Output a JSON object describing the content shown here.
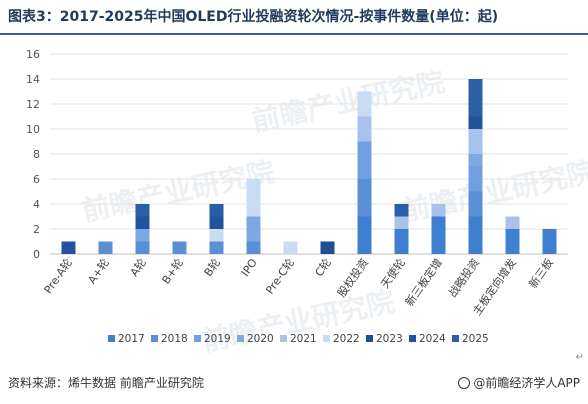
{
  "header": {
    "title": "图表3：2017-2025年中国OLED行业投融资轮次情况-按事件数量(单位：起)"
  },
  "footer": {
    "source": "资料来源：烯牛数据 前瞻产业研究院",
    "brand": "@前瞻经济学人APP"
  },
  "watermark": "前瞻产业研究院",
  "chart_data": {
    "type": "bar",
    "stacked": true,
    "categories": [
      "Pre-A轮",
      "A+轮",
      "A轮",
      "B+轮",
      "B轮",
      "IPO",
      "Pre-C轮",
      "C轮",
      "股权投资",
      "天使轮",
      "新三板定增",
      "战略投资",
      "主板定向增发",
      "新三板"
    ],
    "ylim": [
      0,
      16
    ],
    "yticks": [
      0,
      2,
      4,
      6,
      8,
      10,
      12,
      14,
      16
    ],
    "grid": true,
    "legend_position": "bottom",
    "series": [
      {
        "name": "2017",
        "color": "#3f7fcf",
        "values": [
          0,
          0,
          0,
          0,
          0,
          0,
          0,
          0,
          3,
          2,
          3,
          3,
          2,
          2
        ]
      },
      {
        "name": "2018",
        "color": "#5a8fd6",
        "values": [
          0,
          1,
          1,
          1,
          1,
          1,
          0,
          0,
          3,
          0,
          0,
          2,
          0,
          0
        ]
      },
      {
        "name": "2019",
        "color": "#6f9fe0",
        "values": [
          0,
          0,
          0,
          0,
          0,
          0,
          0,
          0,
          3,
          0,
          0,
          2,
          0,
          0
        ]
      },
      {
        "name": "2020",
        "color": "#7ea8e2",
        "values": [
          0,
          0,
          1,
          0,
          0,
          2,
          0,
          0,
          0,
          0,
          0,
          1,
          0,
          0
        ]
      },
      {
        "name": "2021",
        "color": "#a7c3ec",
        "values": [
          0,
          0,
          0,
          0,
          0,
          0,
          0,
          0,
          2,
          1,
          1,
          2,
          1,
          0
        ]
      },
      {
        "name": "2022",
        "color": "#c9dcf4",
        "values": [
          0,
          0,
          0,
          0,
          1,
          3,
          1,
          0,
          2,
          0,
          0,
          0,
          0,
          0
        ]
      },
      {
        "name": "2023",
        "color": "#1f4e96",
        "values": [
          0,
          0,
          0,
          0,
          0,
          0,
          0,
          1,
          0,
          0,
          0,
          0,
          0,
          0
        ]
      },
      {
        "name": "2024",
        "color": "#21539c",
        "values": [
          1,
          0,
          1,
          0,
          1,
          0,
          0,
          0,
          0,
          0,
          0,
          1,
          0,
          0
        ]
      },
      {
        "name": "2025",
        "color": "#2a5ea6",
        "values": [
          0,
          0,
          1,
          0,
          1,
          0,
          0,
          0,
          0,
          1,
          0,
          3,
          0,
          0
        ]
      }
    ]
  }
}
